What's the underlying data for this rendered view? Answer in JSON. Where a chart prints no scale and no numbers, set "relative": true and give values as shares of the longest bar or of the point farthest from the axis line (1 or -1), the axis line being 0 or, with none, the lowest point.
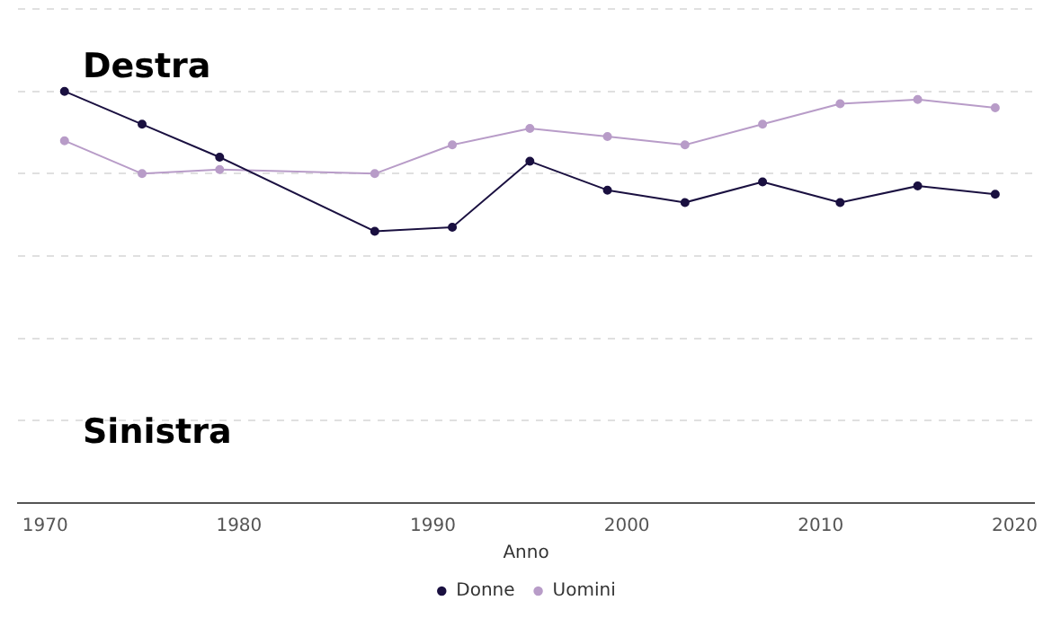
{
  "chart_data": {
    "type": "line",
    "relative": true,
    "xlabel": "Anno",
    "x": [
      1971,
      1975,
      1979,
      1987,
      1991,
      1995,
      1999,
      2003,
      2007,
      2011,
      2015,
      2019
    ],
    "xlim": [
      1968.6,
      2021
    ],
    "xticks": [
      1970,
      1980,
      1990,
      2000,
      2010,
      2020
    ],
    "series": [
      {
        "name": "Donne",
        "color": "#1a1040",
        "values": [
          1.0,
          0.92,
          0.84,
          0.66,
          0.67,
          0.83,
          0.76,
          0.73,
          0.78,
          0.73,
          0.77,
          0.75
        ]
      },
      {
        "name": "Uomini",
        "color": "#b89cc8",
        "values": [
          0.88,
          0.8,
          0.81,
          0.8,
          0.87,
          0.91,
          0.89,
          0.87,
          0.92,
          0.97,
          0.98,
          0.96
        ]
      }
    ],
    "annotations": [
      "Destra",
      "Sinistra"
    ],
    "grid": "y",
    "legend": "bottom",
    "marker": "circle",
    "line_style": "solid"
  }
}
